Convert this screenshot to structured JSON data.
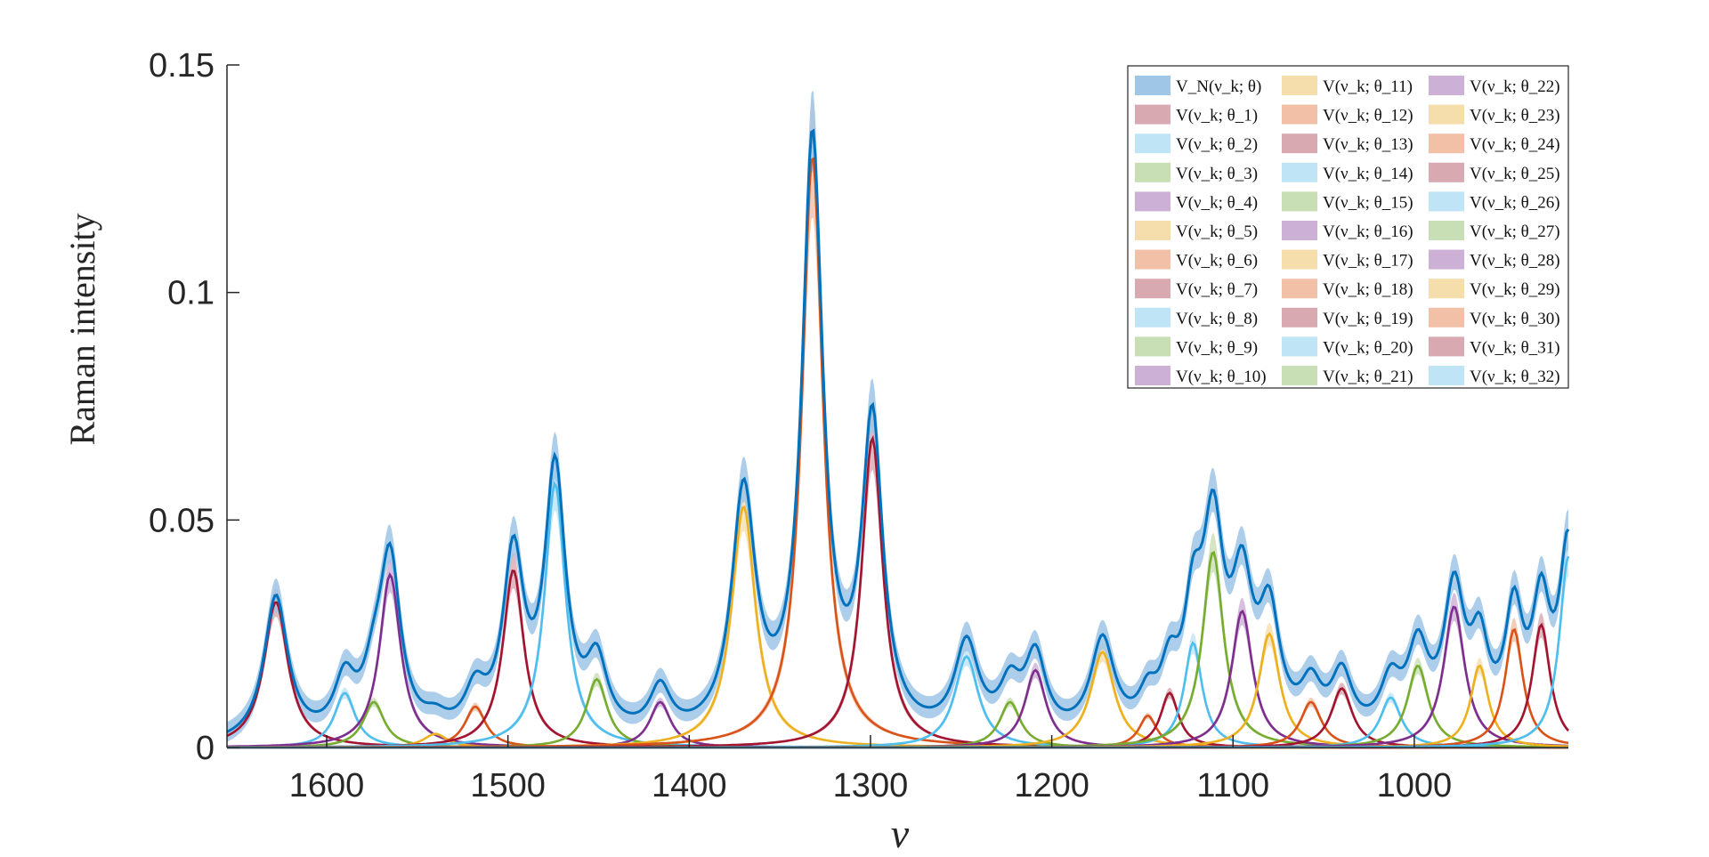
{
  "chart_data": {
    "type": "line",
    "title": "",
    "xlabel": "ν",
    "ylabel": "Raman intensity",
    "xlim": [
      1655,
      915
    ],
    "ylim": [
      0,
      0.15
    ],
    "x_reversed": true,
    "xticks": [
      1600,
      1500,
      1400,
      1300,
      1200,
      1100,
      1000
    ],
    "xtick_labels": [
      "1600",
      "1500",
      "1400",
      "1300",
      "1200",
      "1100",
      "1000"
    ],
    "yticks": [
      0,
      0.05,
      0.1,
      0.15
    ],
    "ytick_labels": [
      "0",
      "0.05",
      "0.1",
      "0.15"
    ],
    "grid": false,
    "legend_position": "top-right",
    "legend_columns": 3,
    "total_series": {
      "label": "V_N(ν_k; θ)",
      "color": "#0072BD",
      "band_color": "#9fc6e6",
      "peaks_note": "sum of the 32 component bands"
    },
    "component_palette": [
      "#A2142F",
      "#4DBEEE",
      "#77AC30",
      "#7E2F8E",
      "#EDB120",
      "#D95319"
    ],
    "component_band_palette": [
      "#d9a9b2",
      "#bfe4f5",
      "#c8deb4",
      "#cdb0d6",
      "#f5deac",
      "#f1c0a6"
    ],
    "series": [
      {
        "name": "V(ν_k; θ_1)",
        "center": 1628,
        "height": 0.032,
        "width": 8
      },
      {
        "name": "V(ν_k; θ_2)",
        "center": 1590,
        "height": 0.012,
        "width": 7
      },
      {
        "name": "V(ν_k; θ_3)",
        "center": 1574,
        "height": 0.01,
        "width": 7
      },
      {
        "name": "V(ν_k; θ_4)",
        "center": 1565,
        "height": 0.038,
        "width": 7
      },
      {
        "name": "V(ν_k; θ_5)",
        "center": 1540,
        "height": 0.003,
        "width": 8
      },
      {
        "name": "V(ν_k; θ_6)",
        "center": 1518,
        "height": 0.009,
        "width": 7
      },
      {
        "name": "V(ν_k; θ_7)",
        "center": 1497,
        "height": 0.039,
        "width": 7
      },
      {
        "name": "V(ν_k; θ_8)",
        "center": 1474,
        "height": 0.058,
        "width": 7
      },
      {
        "name": "V(ν_k; θ_9)",
        "center": 1451,
        "height": 0.015,
        "width": 7
      },
      {
        "name": "V(ν_k; θ_10)",
        "center": 1416,
        "height": 0.01,
        "width": 7
      },
      {
        "name": "V(ν_k; θ_11)",
        "center": 1370,
        "height": 0.053,
        "width": 8
      },
      {
        "name": "V(ν_k; θ_12)",
        "center": 1332,
        "height": 0.13,
        "width": 7
      },
      {
        "name": "V(ν_k; θ_13)",
        "center": 1299,
        "height": 0.068,
        "width": 7
      },
      {
        "name": "V(ν_k; θ_14)",
        "center": 1247,
        "height": 0.02,
        "width": 8
      },
      {
        "name": "V(ν_k; θ_15)",
        "center": 1223,
        "height": 0.01,
        "width": 7
      },
      {
        "name": "V(ν_k; θ_16)",
        "center": 1209,
        "height": 0.017,
        "width": 7
      },
      {
        "name": "V(ν_k; θ_17)",
        "center": 1172,
        "height": 0.021,
        "width": 8
      },
      {
        "name": "V(ν_k; θ_18)",
        "center": 1147,
        "height": 0.007,
        "width": 6
      },
      {
        "name": "V(ν_k; θ_19)",
        "center": 1135,
        "height": 0.012,
        "width": 6
      },
      {
        "name": "V(ν_k; θ_20)",
        "center": 1122,
        "height": 0.023,
        "width": 6
      },
      {
        "name": "V(ν_k; θ_21)",
        "center": 1111,
        "height": 0.043,
        "width": 7
      },
      {
        "name": "V(ν_k; θ_22)",
        "center": 1095,
        "height": 0.03,
        "width": 7
      },
      {
        "name": "V(ν_k; θ_23)",
        "center": 1080,
        "height": 0.025,
        "width": 7
      },
      {
        "name": "V(ν_k; θ_24)",
        "center": 1057,
        "height": 0.01,
        "width": 7
      },
      {
        "name": "V(ν_k; θ_25)",
        "center": 1040,
        "height": 0.013,
        "width": 7
      },
      {
        "name": "V(ν_k; θ_26)",
        "center": 1013,
        "height": 0.011,
        "width": 7
      },
      {
        "name": "V(ν_k; θ_27)",
        "center": 998,
        "height": 0.018,
        "width": 7
      },
      {
        "name": "V(ν_k; θ_28)",
        "center": 978,
        "height": 0.031,
        "width": 7
      },
      {
        "name": "V(ν_k; θ_29)",
        "center": 964,
        "height": 0.018,
        "width": 6
      },
      {
        "name": "V(ν_k; θ_30)",
        "center": 945,
        "height": 0.026,
        "width": 6
      },
      {
        "name": "V(ν_k; θ_31)",
        "center": 930,
        "height": 0.027,
        "width": 6
      },
      {
        "name": "V(ν_k; θ_32)",
        "center": 915,
        "height": 0.042,
        "width": 6
      }
    ]
  }
}
